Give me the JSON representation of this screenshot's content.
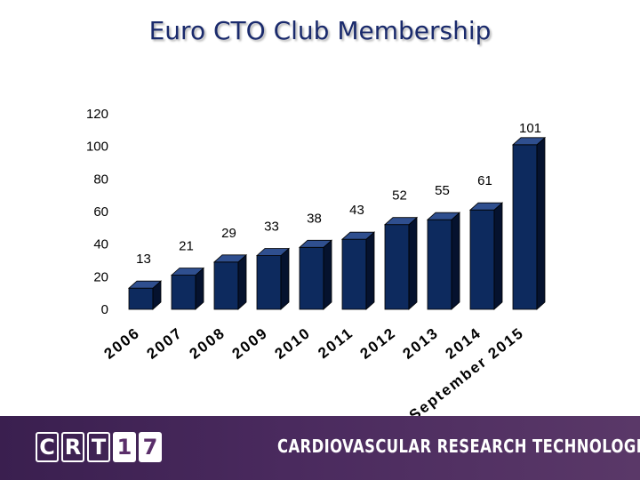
{
  "slide": {
    "title": "Euro CTO Club Membership"
  },
  "chart_data": {
    "type": "bar",
    "categories": [
      "2006",
      "2007",
      "2008",
      "2009",
      "2010",
      "2011",
      "2012",
      "2013",
      "2014",
      "September 2015"
    ],
    "values": [
      13,
      21,
      29,
      33,
      38,
      43,
      52,
      55,
      61,
      101
    ],
    "ylim": [
      0,
      120
    ],
    "yticks": [
      "0",
      "20",
      "40",
      "60",
      "80",
      "100",
      "120"
    ],
    "grid": false,
    "colors": {
      "bar_front": "#0d2a5e",
      "bar_side": "#05122e",
      "bar_top": "#2f4f8f"
    }
  },
  "footer": {
    "logo_letters": [
      "C",
      "R",
      "T",
      "1",
      "7"
    ],
    "text": "CARDIOVASCULAR RESEARCH TECHNOLOGIES",
    "colors": {
      "band": "#4a2a5e"
    }
  }
}
